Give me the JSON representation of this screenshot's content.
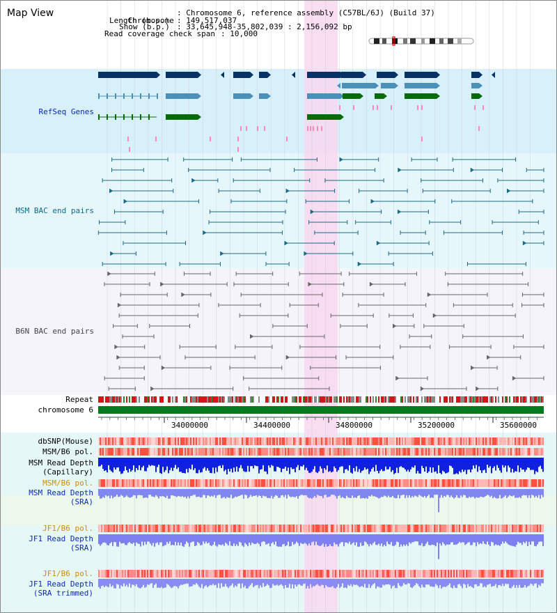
{
  "title": "Map View",
  "header": {
    "chromosome_key": "Chromosome",
    "chromosome_val": ": Chromosome 6, reference assembly (C57BL/6J) (Build 37)",
    "length_key": "Length (b.p.)",
    "length_val": ": 149,517,037",
    "show_key": "Show (b.p.)",
    "show_val": ": 33,645,948-35,802,039 : 2,156,092 bp",
    "coverage_key": "Read coverage check span",
    "coverage_val": ": 10,000"
  },
  "tracks": {
    "refseq": "RefSeq Genes",
    "msm_bac": "MSM BAC end pairs",
    "b6n_bac": "B6N BAC end pairs",
    "repeat": "Repeat",
    "chromosome": "chromosome 6",
    "dbsnp": "dbSNP(Mouse)",
    "msm_b6_pol_1": "MSM/B6 pol.",
    "msm_depth_cap_1": "MSM Read Depth",
    "msm_depth_cap_2": "(Capillary)",
    "msm_b6_pol_2": "MSM/B6 pol.",
    "msm_depth_sra_1": "MSM Read Depth",
    "msm_depth_sra_2": "(SRA)",
    "jf1_b6_pol_1": "JF1/B6 pol.",
    "jf1_depth_sra_1": "JF1 Read Depth",
    "jf1_depth_sra_2": "(SRA)",
    "jf1_b6_pol_2": "JF1/B6 pol.",
    "jf1_depth_trim_1": "JF1 Read Depth",
    "jf1_depth_trim_2": "(SRA trimmed)"
  },
  "axis_ticks": [
    "34000000",
    "34400000",
    "34800000",
    "35200000",
    "35600000"
  ],
  "colors": {
    "refseq_bg": "#d8f0fa",
    "msm_bg": "#e8f8fc",
    "b6n_bg": "#f4f4fa",
    "highlight": "#f8d8f0",
    "chrom_green": "#067a1e",
    "navy": "#063265",
    "steel": "#4a90b8",
    "green": "#086a08",
    "teal": "#1b6a86",
    "gray": "#666666",
    "label_blue": "#0a2ab0",
    "label_teal": "#0a6a8a",
    "label_gray": "#444444",
    "label_orange": "#d08a00"
  }
}
